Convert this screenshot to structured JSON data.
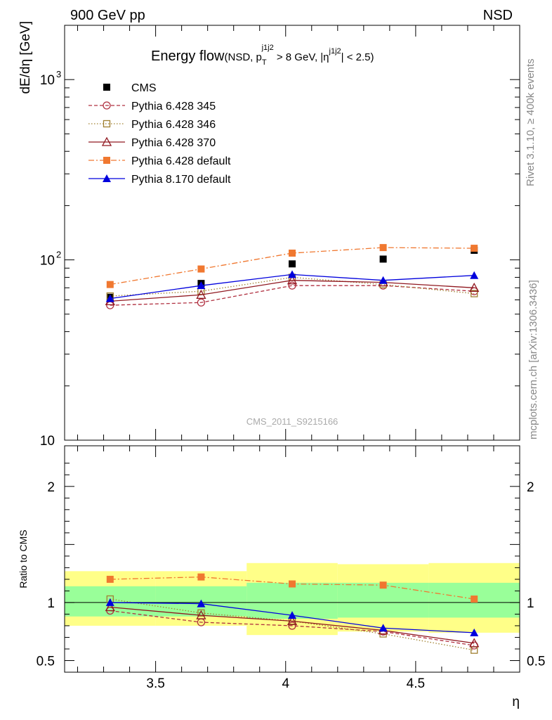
{
  "header": {
    "left": "900 GeV pp",
    "right": "NSD"
  },
  "title": {
    "main": "Energy flow",
    "cuts_text": "(NSD, p",
    "sub_T": "T",
    "sup_j1j2_a": "j1j2",
    "mid": " > 8 GeV, |η",
    "sup_j1j2_b": "j1j2",
    "tail": "| < 2.5)"
  },
  "side_labels": {
    "rivet": "Rivet 3.1.10, ≥ 400k events",
    "mcplots": "mcplots.cern.ch [arXiv:1306.3436]"
  },
  "watermark": "CMS_2011_S9215166",
  "colors": {
    "cms": "#000000",
    "p345": "#b03040",
    "p346": "#a08030",
    "p370": "#901820",
    "p6def": "#f07830",
    "p8def": "#0000dd",
    "band_inner": "#99ff99",
    "band_outer": "#ffff88"
  },
  "chart_data": [
    {
      "type": "line",
      "title": "Energy flow",
      "xlabel": "η",
      "ylabel": "dE/dη [GeV]",
      "yscale": "log",
      "xlim": [
        3.15,
        4.9
      ],
      "ylim": [
        10,
        2000
      ],
      "yticks": [
        {
          "v": 10,
          "label": "10"
        },
        {
          "v": 100,
          "label": "10"
        },
        {
          "v": 1000,
          "label": "10"
        }
      ],
      "ytick_exponents": [
        "",
        "2",
        "3"
      ],
      "legend_position": "top-left",
      "x": [
        3.325,
        3.675,
        4.025,
        4.375,
        4.725
      ],
      "series": [
        {
          "name": "CMS",
          "key": "cms",
          "values": [
            62,
            74,
            95,
            101,
            113
          ]
        },
        {
          "name": "Pythia 6.428 345",
          "key": "p345",
          "values": [
            56,
            58,
            72,
            72,
            67
          ]
        },
        {
          "name": "Pythia 6.428 346",
          "key": "p346",
          "values": [
            63,
            67,
            80,
            73,
            65
          ]
        },
        {
          "name": "Pythia 6.428 370",
          "key": "p370",
          "values": [
            59,
            64,
            77,
            75,
            70
          ]
        },
        {
          "name": "Pythia 6.428 default",
          "key": "p6def",
          "values": [
            73,
            89,
            109,
            117,
            116
          ]
        },
        {
          "name": "Pythia 8.170 default",
          "key": "p8def",
          "values": [
            61,
            72,
            83,
            77,
            82
          ]
        }
      ]
    },
    {
      "type": "line",
      "title": "",
      "xlabel": "η",
      "ylabel": "Ratio to CMS",
      "xlim": [
        3.15,
        4.9
      ],
      "ylim": [
        0.4,
        2.35
      ],
      "xticks": [
        {
          "v": 3.5,
          "label": "3.5"
        },
        {
          "v": 4.0,
          "label": "4"
        },
        {
          "v": 4.5,
          "label": "4.5"
        }
      ],
      "yticks": [
        {
          "v": 0.5,
          "label": "0.5"
        },
        {
          "v": 1,
          "label": "1"
        },
        {
          "v": 2,
          "label": "2"
        }
      ],
      "bands": [
        {
          "x0": 3.15,
          "x1": 3.5,
          "outer": [
            0.8,
            1.27
          ],
          "inner": [
            0.88,
            1.14
          ]
        },
        {
          "x0": 3.5,
          "x1": 3.85,
          "outer": [
            0.8,
            1.27
          ],
          "inner": [
            0.88,
            1.14
          ]
        },
        {
          "x0": 3.85,
          "x1": 4.2,
          "outer": [
            0.72,
            1.34
          ],
          "inner": [
            0.86,
            1.17
          ]
        },
        {
          "x0": 4.2,
          "x1": 4.55,
          "outer": [
            0.75,
            1.33
          ],
          "inner": [
            0.87,
            1.17
          ]
        },
        {
          "x0": 4.55,
          "x1": 4.9,
          "outer": [
            0.74,
            1.34
          ],
          "inner": [
            0.87,
            1.17
          ]
        }
      ],
      "x": [
        3.325,
        3.675,
        4.025,
        4.375,
        4.725
      ],
      "series": [
        {
          "name": "Pythia 6.428 345",
          "key": "p345",
          "values": [
            0.93,
            0.83,
            0.8,
            0.75,
            0.63
          ]
        },
        {
          "name": "Pythia 6.428 346",
          "key": "p346",
          "values": [
            1.03,
            0.91,
            0.84,
            0.73,
            0.59
          ]
        },
        {
          "name": "Pythia 6.428 370",
          "key": "p370",
          "values": [
            0.96,
            0.89,
            0.84,
            0.76,
            0.65
          ]
        },
        {
          "name": "Pythia 6.428 default",
          "key": "p6def",
          "values": [
            1.2,
            1.22,
            1.16,
            1.15,
            1.03
          ]
        },
        {
          "name": "Pythia 8.170 default",
          "key": "p8def",
          "values": [
            1.0,
            0.99,
            0.89,
            0.78,
            0.74
          ]
        }
      ]
    }
  ]
}
